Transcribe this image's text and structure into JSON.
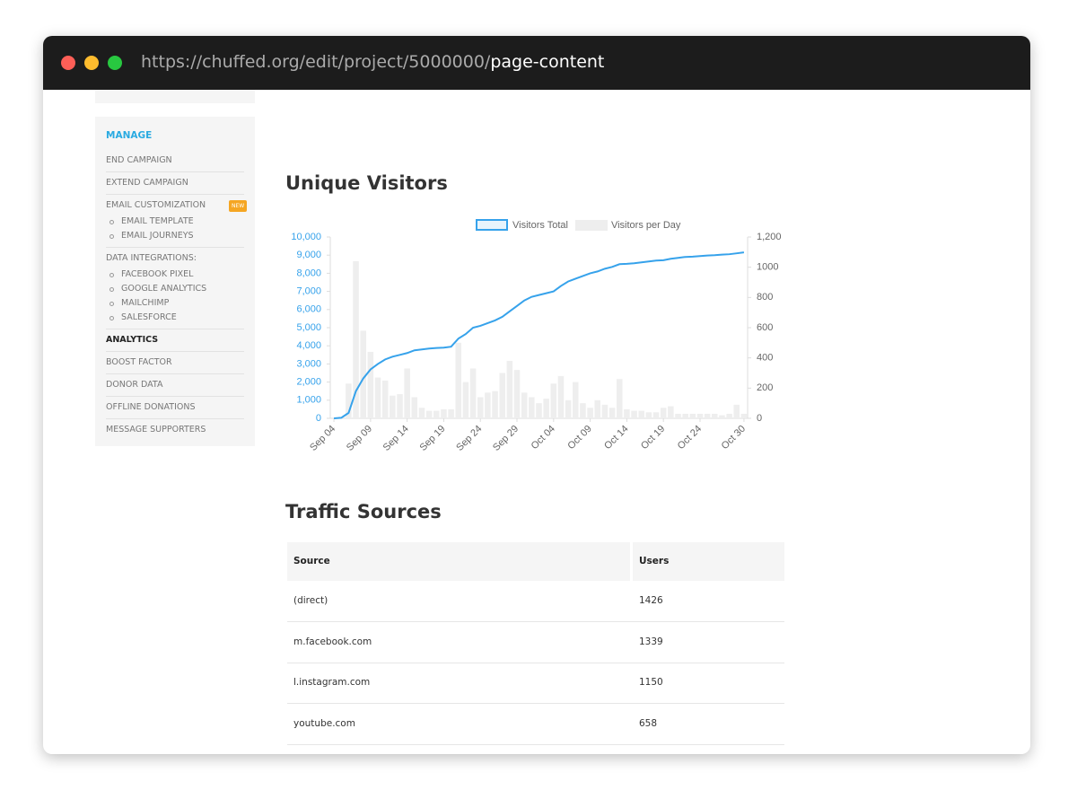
{
  "browser": {
    "url_base": "https://chuffed.org/edit/project/5000000/",
    "url_path": "page-content"
  },
  "sidebar": {
    "heading": "MANAGE",
    "items": [
      {
        "label": "END CAMPAIGN"
      },
      {
        "label": "EXTEND CAMPAIGN"
      },
      {
        "label": "EMAIL CUSTOMIZATION",
        "badge": "NEW",
        "subitems": [
          "EMAIL TEMPLATE",
          "EMAIL JOURNEYS"
        ]
      },
      {
        "label": "DATA INTEGRATIONS:",
        "subitems": [
          "FACEBOOK PIXEL",
          "GOOGLE ANALYTICS",
          "MAILCHIMP",
          "SALESFORCE"
        ]
      },
      {
        "label": "ANALYTICS",
        "active": true
      },
      {
        "label": "BOOST FACTOR"
      },
      {
        "label": "DONOR DATA"
      },
      {
        "label": "OFFLINE DONATIONS"
      },
      {
        "label": "MESSAGE SUPPORTERS"
      }
    ]
  },
  "sections": {
    "visitors_title": "Unique Visitors",
    "traffic_title": "Traffic Sources"
  },
  "chart_data": {
    "type": "combo",
    "categories": [
      "Sep 04",
      null,
      null,
      null,
      null,
      "Sep 09",
      null,
      null,
      null,
      null,
      "Sep 14",
      null,
      null,
      null,
      null,
      "Sep 19",
      null,
      null,
      null,
      null,
      "Sep 24",
      null,
      null,
      null,
      null,
      "Sep 29",
      null,
      null,
      null,
      null,
      "Oct 04",
      null,
      null,
      null,
      null,
      "Oct 09",
      null,
      null,
      null,
      null,
      "Oct 14",
      null,
      null,
      null,
      null,
      "Oct 19",
      null,
      null,
      null,
      null,
      "Oct 24",
      null,
      null,
      null,
      null,
      null,
      "Oct 30"
    ],
    "series": [
      {
        "name": "Visitors Total",
        "type": "line",
        "color": "#36a2eb",
        "values": [
          0,
          30,
          300,
          1500,
          2200,
          2700,
          3000,
          3250,
          3400,
          3500,
          3600,
          3750,
          3800,
          3850,
          3880,
          3900,
          3950,
          4400,
          4650,
          5000,
          5100,
          5250,
          5400,
          5600,
          5900,
          6200,
          6500,
          6700,
          6800,
          6900,
          7000,
          7300,
          7550,
          7700,
          7850,
          8000,
          8100,
          8250,
          8350,
          8500,
          8520,
          8550,
          8600,
          8650,
          8700,
          8720,
          8800,
          8850,
          8900,
          8920,
          8950,
          8980,
          9000,
          9030,
          9050,
          9100,
          9150
        ]
      },
      {
        "name": "Visitors per Day",
        "type": "bar",
        "axis": "y2",
        "color": "#eeeeee",
        "values": [
          0,
          10,
          230,
          1040,
          580,
          440,
          270,
          250,
          150,
          160,
          330,
          140,
          70,
          50,
          50,
          60,
          60,
          500,
          240,
          330,
          140,
          170,
          180,
          300,
          380,
          320,
          170,
          140,
          100,
          130,
          230,
          280,
          120,
          240,
          100,
          70,
          120,
          90,
          70,
          260,
          60,
          50,
          50,
          40,
          40,
          70,
          80,
          30,
          30,
          30,
          30,
          30,
          30,
          20,
          30,
          90,
          30
        ]
      }
    ],
    "ylim": [
      0,
      10000
    ],
    "yticks": [
      0,
      {
        "value": 1000,
        "label": "1,000"
      },
      {
        "value": 2000,
        "label": "2,000"
      },
      {
        "value": 3000,
        "label": "3,000"
      },
      {
        "value": 4000,
        "label": "4,000"
      },
      {
        "value": 5000,
        "label": "5,000"
      },
      {
        "value": 6000,
        "label": "6,000"
      },
      {
        "value": 7000,
        "label": "7,000"
      },
      {
        "value": 8000,
        "label": "8,000"
      },
      {
        "value": 9000,
        "label": "9,000"
      },
      {
        "value": 10000,
        "label": "10,000"
      }
    ],
    "y_tick_color": "#36a2eb",
    "y2lim": [
      0,
      1200
    ],
    "y2ticks": [
      0,
      200,
      400,
      600,
      800,
      1000,
      {
        "value": 1200,
        "label": "1,200"
      }
    ],
    "legend": "top",
    "grid": false
  },
  "table": {
    "header": [
      "Source",
      "Users"
    ],
    "rows": [
      [
        "(direct)",
        1426
      ],
      [
        "m.facebook.com",
        1339
      ],
      [
        "l.instagram.com",
        1150
      ],
      [
        "youtube.com",
        658
      ]
    ]
  }
}
